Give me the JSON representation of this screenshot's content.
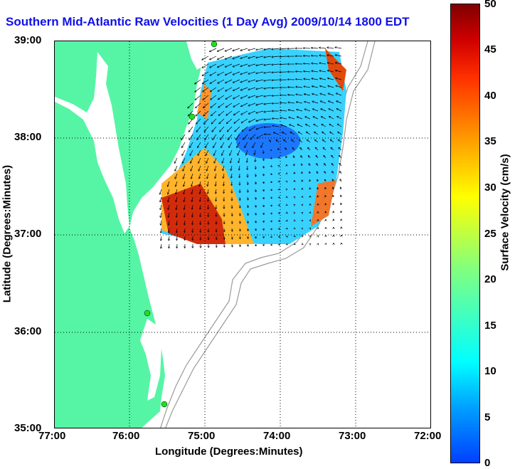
{
  "title": "Southern Mid-Atlantic Raw Velocities (1 Day Avg) 2009/10/14 1800 EDT",
  "x_axis": {
    "title": "Longitude (Degrees:Minutes)",
    "ticks": [
      "77:00",
      "76:00",
      "75:00",
      "74:00",
      "73:00",
      "72:00"
    ]
  },
  "y_axis": {
    "title": "Latitude (Degrees:Minutes)",
    "ticks": [
      "39:00",
      "38:00",
      "37:00",
      "36:00",
      "35:00"
    ]
  },
  "colorbar": {
    "title": "Surface Velocity (cm/s)",
    "ticks": [
      "50",
      "45",
      "40",
      "35",
      "30",
      "25",
      "20",
      "15",
      "10",
      "5",
      "0"
    ],
    "range": [
      0,
      50
    ],
    "colormap": "jet"
  },
  "colors": {
    "land": "#55f5a5",
    "water": "#ffffff",
    "bathymetry": "#9a9a9a",
    "title": "#1010e8",
    "station": "#22dd22"
  }
}
